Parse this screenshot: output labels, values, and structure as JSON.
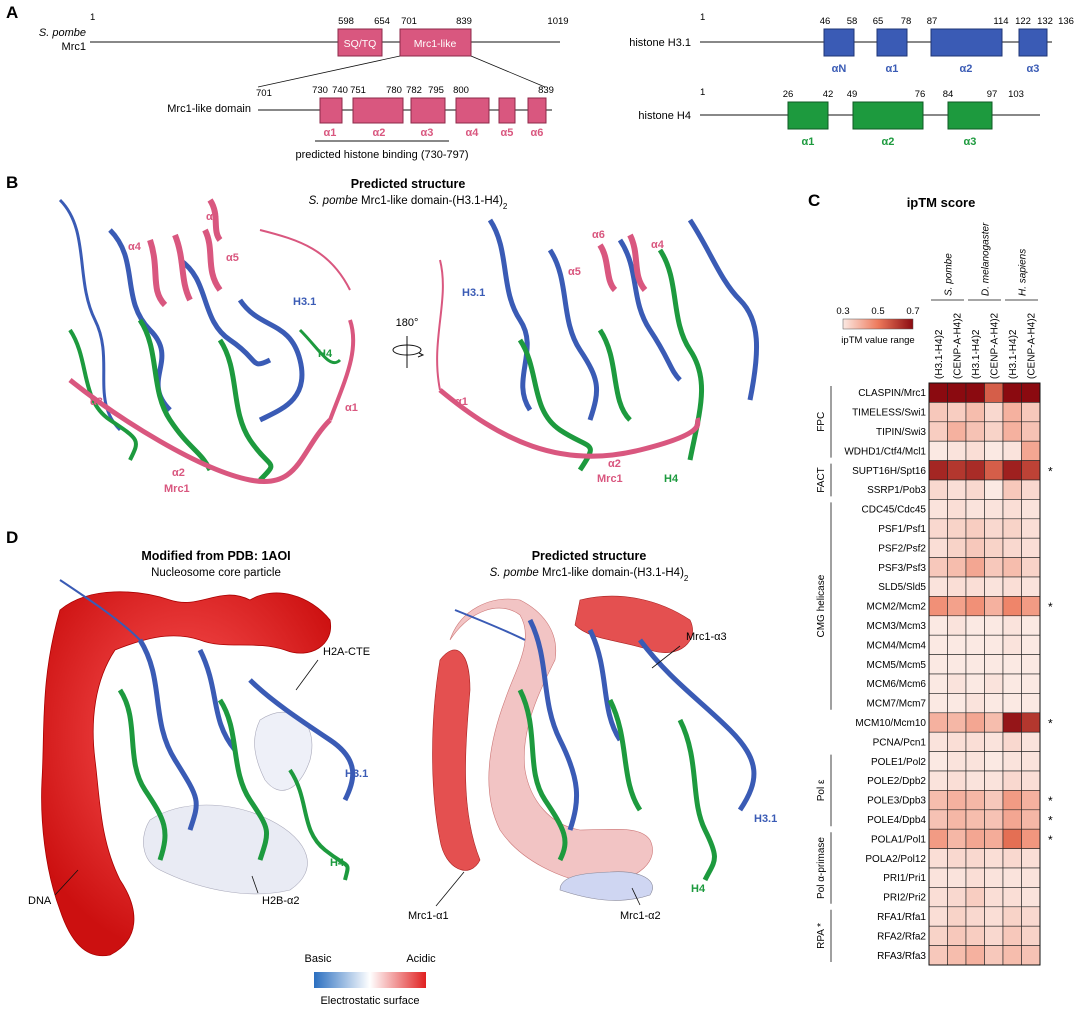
{
  "panel_a": {
    "label": "A",
    "mrc1": {
      "species": "S. pombe",
      "name": "Mrc1",
      "nums": [
        "1",
        "598",
        "654",
        "701",
        "839",
        "1019"
      ],
      "dom_sq": "SQ/TQ",
      "dom_like": "Mrc1-like"
    },
    "like": {
      "name": "Mrc1-like domain",
      "nums": [
        "701",
        "730",
        "740",
        "751",
        "780",
        "782",
        "795",
        "800",
        "839"
      ],
      "helices": [
        "α1",
        "α2",
        "α3",
        "α4",
        "α5",
        "α6"
      ],
      "binding": "predicted histone binding (730-797)"
    },
    "h3": {
      "name": "histone H3.1",
      "nums": [
        "1",
        "46",
        "58",
        "65",
        "78",
        "87",
        "114",
        "122",
        "132",
        "136"
      ],
      "helices": [
        "αN",
        "α1",
        "α2",
        "α3"
      ]
    },
    "h4": {
      "name": "histone H4",
      "nums": [
        "1",
        "26",
        "42",
        "49",
        "76",
        "84",
        "97",
        "103"
      ],
      "helices": [
        "α1",
        "α2",
        "α3"
      ]
    }
  },
  "panel_b": {
    "label": "B",
    "title": "Predicted structure",
    "subtitle_species": "S. pombe",
    "subtitle_rest": "Mrc1-like domain-(H3.1-H4)",
    "subtitle_sub": "2",
    "rotation": "180°",
    "left_labels": [
      "α6",
      "α4",
      "α5",
      "H3.1",
      "H4",
      "α3",
      "α1",
      "α2",
      "Mrc1"
    ],
    "right_labels": [
      "α6",
      "α4",
      "α5",
      "H3.1",
      "α1",
      "α2",
      "Mrc1",
      "H4"
    ]
  },
  "panel_c": {
    "label": "C",
    "title": "ipTM score",
    "colorbar": {
      "ticks": [
        "0.3",
        "0.5",
        "0.7"
      ],
      "caption": "ipTM value range",
      "min_color": "#fbe9e3",
      "max_color": "#8b0a10"
    },
    "species": [
      "S. pombe",
      "D. melanogaster",
      "H. sapiens"
    ],
    "columns": [
      "(H3.1-H4)2",
      "(CENP-A-H4)2",
      "(H3.1-H4)2",
      "(CENP-A-H4)2",
      "(H3.1-H4)2",
      "(CENP-A-H4)2"
    ],
    "groups": [
      {
        "name": "FPC",
        "start": 0,
        "end": 3
      },
      {
        "name": "FACT",
        "start": 4,
        "end": 5
      },
      {
        "name": "CMG helicase",
        "start": 6,
        "end": 16
      },
      {
        "name": "Pol ε",
        "start": 19,
        "end": 22
      },
      {
        "name": "Pol α-primase",
        "start": 23,
        "end": 26
      },
      {
        "name": "RPA *",
        "start": 27,
        "end": 29
      }
    ],
    "rows": [
      "CLASPIN/Mrc1",
      "TIMELESS/Swi1",
      "TIPIN/Swi3",
      "WDHD1/Ctf4/Mcl1",
      "SUPT16H/Spt16",
      "SSRP1/Pob3",
      "CDC45/Cdc45",
      "PSF1/Psf1",
      "PSF2/Psf2",
      "PSF3/Psf3",
      "SLD5/Sld5",
      "MCM2/Mcm2",
      "MCM3/Mcm3",
      "MCM4/Mcm4",
      "MCM5/Mcm5",
      "MCM6/Mcm6",
      "MCM7/Mcm7",
      "MCM10/Mcm10",
      "PCNA/Pcn1",
      "POLE1/Pol2",
      "POLE2/Dpb2",
      "POLE3/Dpb3",
      "POLE4/Dpb4",
      "POLA1/Pol1",
      "POLA2/Pol12",
      "PRI1/Pri1",
      "PRI2/Pri2",
      "RFA1/Rfa1",
      "RFA2/Rfa2",
      "RFA3/Rfa3"
    ],
    "stars": [
      "",
      "",
      "",
      "",
      "*",
      "",
      "",
      "",
      "",
      "",
      "",
      "*",
      "",
      "",
      "",
      "",
      "",
      "*",
      "",
      "",
      "",
      "*",
      "*",
      "*",
      "",
      "",
      "",
      "",
      "",
      ""
    ]
  },
  "chart_data": {
    "type": "heatmap",
    "title": "ipTM score",
    "columns": [
      "(H3.1-H4)2",
      "(CENP-A-H4)2",
      "(H3.1-H4)2",
      "(CENP-A-H4)2",
      "(H3.1-H4)2",
      "(CENP-A-H4)2"
    ],
    "rows": [
      "CLASPIN/Mrc1",
      "TIMELESS/Swi1",
      "TIPIN/Swi3",
      "WDHD1/Ctf4/Mcl1",
      "SUPT16H/Spt16",
      "SSRP1/Pob3",
      "CDC45/Cdc45",
      "PSF1/Psf1",
      "PSF2/Psf2",
      "PSF3/Psf3",
      "SLD5/Sld5",
      "MCM2/Mcm2",
      "MCM3/Mcm3",
      "MCM4/Mcm4",
      "MCM5/Mcm5",
      "MCM6/Mcm6",
      "MCM7/Mcm7",
      "MCM10/Mcm10",
      "PCNA/Pcn1",
      "POLE1/Pol2",
      "POLE2/Dpb2",
      "POLE3/Dpb3",
      "POLE4/Dpb4",
      "POLA1/Pol1",
      "POLA2/Pol12",
      "PRI1/Pri1",
      "PRI2/Pri2",
      "RFA1/Rfa1",
      "RFA2/Rfa2",
      "RFA3/Rfa3"
    ],
    "values": [
      [
        0.75,
        0.74,
        0.72,
        0.55,
        0.72,
        0.75
      ],
      [
        0.36,
        0.35,
        0.38,
        0.33,
        0.4,
        0.36
      ],
      [
        0.35,
        0.4,
        0.37,
        0.34,
        0.4,
        0.37
      ],
      [
        0.3,
        0.31,
        0.32,
        0.3,
        0.31,
        0.42
      ],
      [
        0.65,
        0.62,
        0.64,
        0.55,
        0.66,
        0.6
      ],
      [
        0.33,
        0.32,
        0.33,
        0.3,
        0.36,
        0.33
      ],
      [
        0.31,
        0.32,
        0.31,
        0.31,
        0.32,
        0.31
      ],
      [
        0.33,
        0.34,
        0.35,
        0.33,
        0.34,
        0.32
      ],
      [
        0.32,
        0.34,
        0.36,
        0.34,
        0.33,
        0.32
      ],
      [
        0.36,
        0.38,
        0.42,
        0.36,
        0.38,
        0.34
      ],
      [
        0.31,
        0.32,
        0.32,
        0.31,
        0.32,
        0.31
      ],
      [
        0.46,
        0.43,
        0.46,
        0.4,
        0.48,
        0.44
      ],
      [
        0.3,
        0.31,
        0.3,
        0.3,
        0.31,
        0.3
      ],
      [
        0.3,
        0.3,
        0.3,
        0.3,
        0.31,
        0.3
      ],
      [
        0.3,
        0.3,
        0.3,
        0.3,
        0.3,
        0.3
      ],
      [
        0.3,
        0.31,
        0.3,
        0.31,
        0.3,
        0.3
      ],
      [
        0.3,
        0.3,
        0.31,
        0.3,
        0.3,
        0.3
      ],
      [
        0.4,
        0.39,
        0.42,
        0.38,
        0.68,
        0.62
      ],
      [
        0.31,
        0.32,
        0.32,
        0.31,
        0.33,
        0.31
      ],
      [
        0.3,
        0.31,
        0.31,
        0.3,
        0.31,
        0.31
      ],
      [
        0.31,
        0.32,
        0.31,
        0.31,
        0.33,
        0.32
      ],
      [
        0.38,
        0.4,
        0.39,
        0.36,
        0.44,
        0.4
      ],
      [
        0.37,
        0.39,
        0.38,
        0.37,
        0.42,
        0.39
      ],
      [
        0.44,
        0.39,
        0.42,
        0.41,
        0.52,
        0.45
      ],
      [
        0.32,
        0.33,
        0.33,
        0.32,
        0.33,
        0.32
      ],
      [
        0.31,
        0.31,
        0.32,
        0.31,
        0.31,
        0.31
      ],
      [
        0.32,
        0.33,
        0.35,
        0.32,
        0.32,
        0.31
      ],
      [
        0.32,
        0.34,
        0.33,
        0.32,
        0.34,
        0.33
      ],
      [
        0.34,
        0.36,
        0.35,
        0.33,
        0.36,
        0.34
      ],
      [
        0.36,
        0.38,
        0.4,
        0.36,
        0.38,
        0.37
      ]
    ],
    "vmin": 0.3,
    "vmax": 0.7
  },
  "panel_d": {
    "label": "D",
    "left_title": "Modified from PDB: 1AOI",
    "left_subtitle": "Nucleosome core particle",
    "left_labels": [
      "H2A-CTE",
      "H3.1",
      "H4",
      "H2B-α2",
      "DNA"
    ],
    "right_title": "Predicted structure",
    "right_subtitle_species": "S. pombe",
    "right_subtitle_rest": "Mrc1-like domain-(H3.1-H4)",
    "right_subtitle_sub": "2",
    "right_labels": [
      "Mrc1-α3",
      "H3.1",
      "H4",
      "Mrc1-α1",
      "Mrc1-α2"
    ],
    "colorbar": {
      "left": "Basic",
      "right": "Acidic",
      "caption": "Electrostatic surface",
      "c_basic": "#2b6fc0",
      "c_mid": "#ffffff",
      "c_acidic": "#e02020"
    }
  }
}
